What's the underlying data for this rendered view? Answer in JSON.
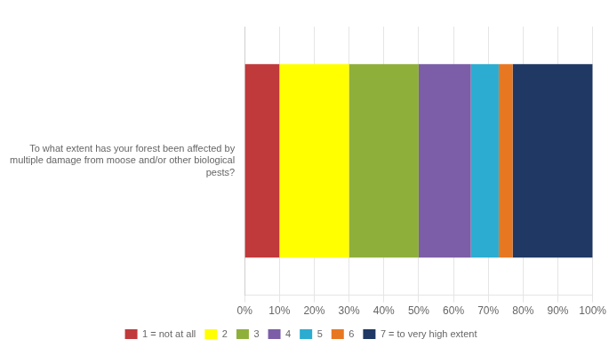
{
  "chart_data": {
    "type": "bar",
    "orientation": "horizontal",
    "stacked": true,
    "categories": [
      "To what extent has your forest been affected by\nmultiple damage from moose and/or other biological\npests?"
    ],
    "series": [
      {
        "name": "1 = not at all",
        "color": "#c0393b",
        "values": [
          10
        ]
      },
      {
        "name": "2",
        "color": "#ffff00",
        "values": [
          20
        ]
      },
      {
        "name": "3",
        "color": "#8faf3b",
        "values": [
          20
        ]
      },
      {
        "name": "4",
        "color": "#7b5ea7",
        "values": [
          15
        ]
      },
      {
        "name": "5",
        "color": "#2bacd0",
        "values": [
          8
        ]
      },
      {
        "name": "6",
        "color": "#e87722",
        "values": [
          4
        ]
      },
      {
        "name": "7 = to very high extent",
        "color": "#1f3864",
        "values": [
          23
        ]
      }
    ],
    "xlim": [
      0,
      100
    ],
    "xticks": [
      {
        "value": 0,
        "label": "0%"
      },
      {
        "value": 10,
        "label": "10%"
      },
      {
        "value": 20,
        "label": "20%"
      },
      {
        "value": 30,
        "label": "30%"
      },
      {
        "value": 40,
        "label": "40%"
      },
      {
        "value": 50,
        "label": "50%"
      },
      {
        "value": 60,
        "label": "60%"
      },
      {
        "value": 70,
        "label": "70%"
      },
      {
        "value": 80,
        "label": "80%"
      },
      {
        "value": 90,
        "label": "90%"
      },
      {
        "value": 100,
        "label": "100%"
      }
    ],
    "grid": true,
    "legend": "bottom"
  }
}
